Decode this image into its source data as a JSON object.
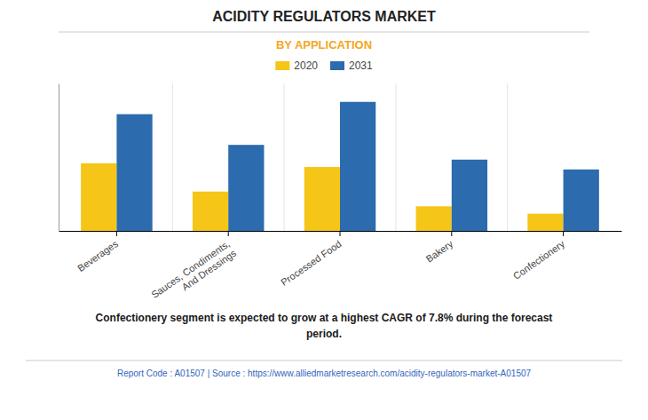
{
  "chart_data": {
    "type": "bar",
    "title": "ACIDITY REGULATORS MARKET",
    "subtitle": "BY APPLICATION",
    "categories": [
      "Beverages",
      "Sauces, Condiments,\nAnd Dressings",
      "Processed Food",
      "Bakery",
      "Confectionery"
    ],
    "series": [
      {
        "name": "2020",
        "color": "#F5C518",
        "values": [
          5.5,
          3.2,
          5.2,
          2.0,
          1.4
        ]
      },
      {
        "name": "2031",
        "color": "#2C6BAD",
        "values": [
          9.5,
          7.0,
          10.5,
          5.8,
          5.0
        ]
      }
    ],
    "ylim": [
      0,
      12
    ],
    "yticks": [],
    "grid": false,
    "legend": "top",
    "tick_labels": "x",
    "annotations": [
      "Confectionery segment is expected to grow at a highest CAGR of 7.8% during the forecast\nperiod.",
      "Report Code : A01507  |  Source : https://www.alliedmarketresearch.com/acidity-regulators-market-A01507"
    ]
  }
}
